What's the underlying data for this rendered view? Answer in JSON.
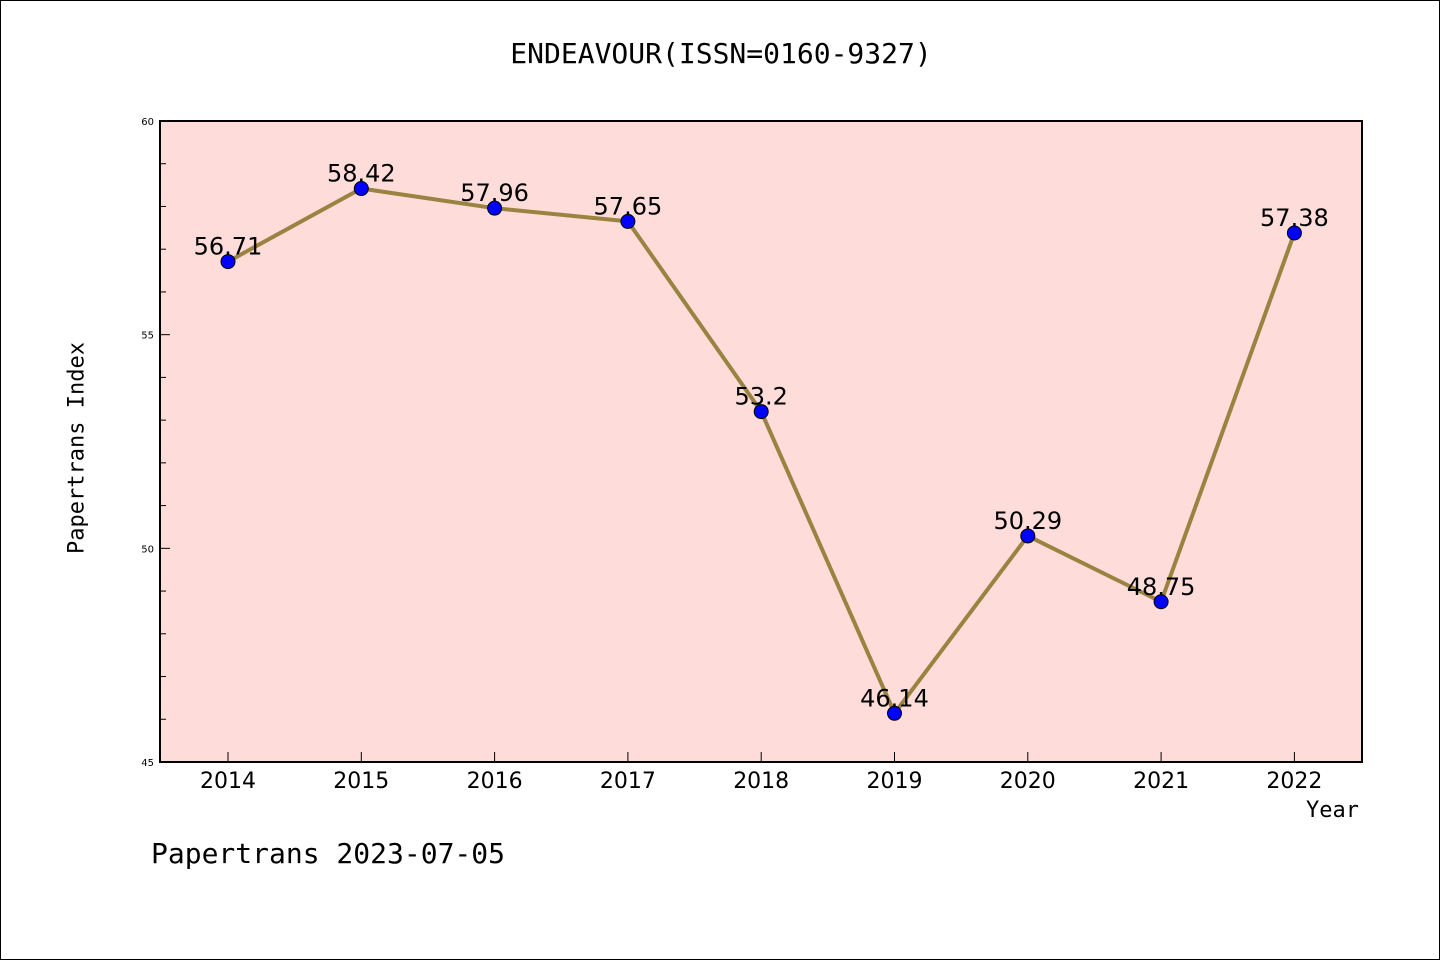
{
  "chart_data": {
    "type": "line",
    "title": "ENDEAVOUR(ISSN=0160-9327)",
    "xlabel": "Year",
    "ylabel": "Papertrans Index",
    "categories": [
      "2014",
      "2015",
      "2016",
      "2017",
      "2018",
      "2019",
      "2020",
      "2021",
      "2022"
    ],
    "values": [
      56.71,
      58.42,
      57.96,
      57.65,
      53.2,
      46.14,
      50.29,
      48.75,
      57.38
    ],
    "data_labels": [
      "56.71",
      "58.42",
      "57.96",
      "57.65",
      "53.2",
      "46.14",
      "50.29",
      "48.75",
      "57.38"
    ],
    "ylim": [
      45,
      60
    ],
    "y_ticks": [
      "45",
      "50",
      "55",
      "60"
    ],
    "y_tick_values": [
      45,
      50,
      55,
      60
    ],
    "grid": false,
    "legend": "none",
    "colors": {
      "plot_background": "#fddcda",
      "line": "#9a8340",
      "marker": "#0000ff"
    }
  },
  "footer": {
    "watermark": "Papertrans 2023-07-05"
  }
}
